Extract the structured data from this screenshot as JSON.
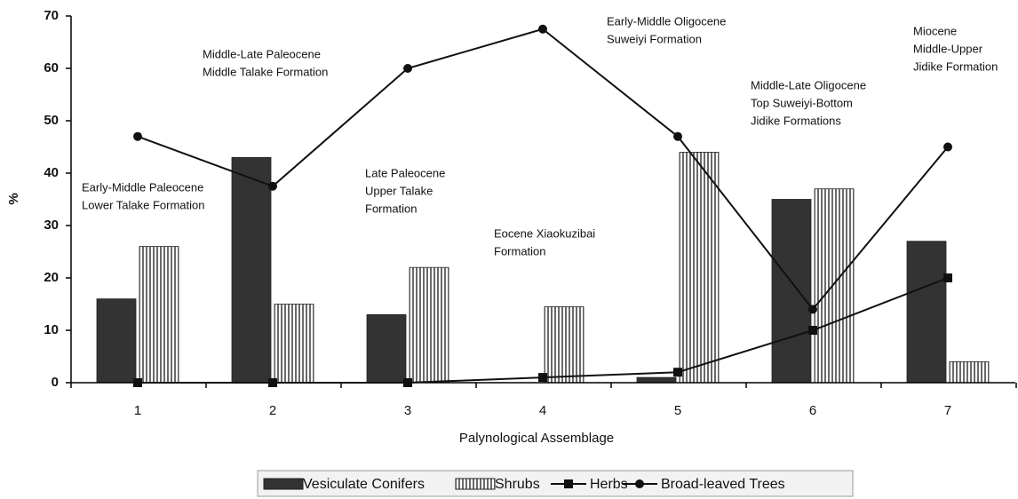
{
  "chart_data": {
    "type": "bar",
    "x_label": "Palynological Assemblage",
    "y_label": "%",
    "categories": [
      "1",
      "2",
      "3",
      "4",
      "5",
      "6",
      "7"
    ],
    "series": [
      {
        "name": "Vesiculate Conifers",
        "type": "bar",
        "color": "#333333",
        "values": [
          16,
          43,
          13,
          0,
          1,
          35,
          27
        ]
      },
      {
        "name": "Shrubs",
        "type": "bar",
        "color": "#444444",
        "values": [
          26,
          15,
          22,
          14.5,
          44,
          37,
          4
        ]
      },
      {
        "name": "Herbs",
        "type": "line",
        "marker": "square",
        "color": "#111111",
        "values": [
          0,
          0,
          0,
          1,
          2,
          10,
          20
        ]
      },
      {
        "name": "Broad-leaved Trees",
        "type": "line",
        "marker": "circle",
        "color": "#111111",
        "values": [
          47,
          37.5,
          60,
          67.5,
          47,
          14,
          45
        ]
      }
    ],
    "ylim": [
      0,
      70
    ],
    "yticks": [
      0,
      10,
      20,
      30,
      40,
      50,
      60,
      70
    ],
    "annotations": [
      [
        "Early-Middle Paleocene",
        "Lower Talake Formation"
      ],
      [
        "Middle-Late Paleocene",
        "Middle Talake Formation"
      ],
      [
        "Late Paleocene",
        "Upper Talake",
        "Formation"
      ],
      [
        "Eocene Xiaokuzibai",
        "Formation"
      ],
      [
        "Early-Middle Oligocene",
        "Suweiyi Formation"
      ],
      [
        "Middle-Late Oligocene",
        "Top Suweiyi-Bottom",
        "Jidike Formations"
      ],
      [
        "Miocene",
        "Middle-Upper",
        "Jidike Formation"
      ]
    ],
    "legend": "bottom"
  }
}
